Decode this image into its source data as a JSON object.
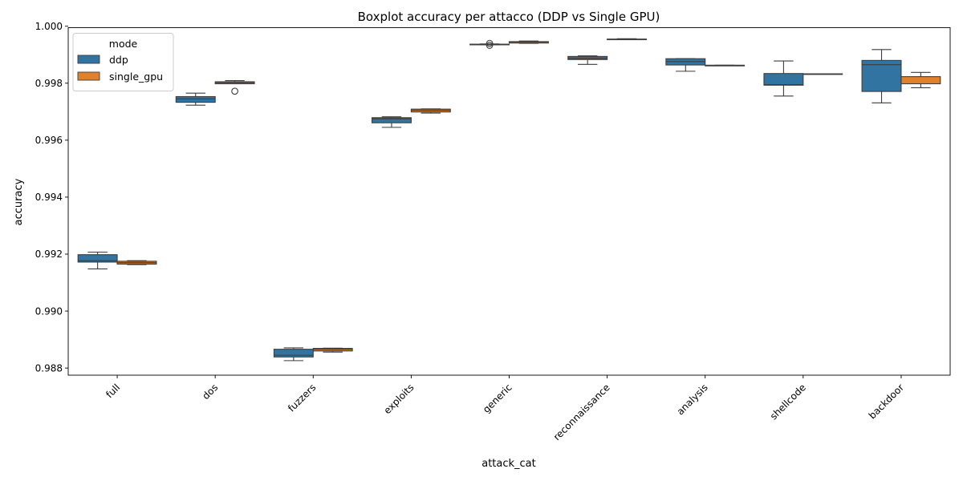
{
  "chart_data": {
    "type": "boxplot",
    "title": "Boxplot accuracy per attacco (DDP vs Single GPU)",
    "xlabel": "attack_cat",
    "ylabel": "accuracy",
    "ylim": [
      0.98775,
      0.99995
    ],
    "yticks": [
      "0.988",
      "0.990",
      "0.992",
      "0.994",
      "0.996",
      "0.998",
      "1.000"
    ],
    "ytick_values": [
      0.988,
      0.99,
      0.992,
      0.994,
      0.996,
      0.998,
      1.0
    ],
    "categories": [
      "full",
      "dos",
      "fuzzers",
      "exploits",
      "generic",
      "reconnaissance",
      "analysis",
      "shellcode",
      "backdoor"
    ],
    "grid": false,
    "legend": {
      "title": "mode",
      "position": "top-left"
    },
    "series": [
      {
        "name": "ddp",
        "color": "#3274a1",
        "boxes": [
          {
            "whislo": 0.99148,
            "q1": 0.99172,
            "med": 0.99177,
            "q3": 0.99198,
            "whishi": 0.99207,
            "fliers": []
          },
          {
            "whislo": 0.99723,
            "q1": 0.99733,
            "med": 0.99745,
            "q3": 0.99753,
            "whishi": 0.99765,
            "fliers": []
          },
          {
            "whislo": 0.98826,
            "q1": 0.98839,
            "med": 0.98845,
            "q3": 0.98866,
            "whishi": 0.98871,
            "fliers": []
          },
          {
            "whislo": 0.99645,
            "q1": 0.99661,
            "med": 0.99675,
            "q3": 0.99679,
            "whishi": 0.99682,
            "fliers": []
          },
          {
            "whislo": 0.99935,
            "q1": 0.99936,
            "med": 0.99936,
            "q3": 0.99937,
            "whishi": 0.99938,
            "fliers": [
              0.99933,
              0.9994
            ]
          },
          {
            "whislo": 0.99866,
            "q1": 0.99883,
            "med": 0.99888,
            "q3": 0.99894,
            "whishi": 0.99896,
            "fliers": []
          },
          {
            "whislo": 0.99842,
            "q1": 0.99864,
            "med": 0.99876,
            "q3": 0.99886,
            "whishi": 0.99886,
            "fliers": []
          },
          {
            "whislo": 0.99755,
            "q1": 0.99793,
            "med": 0.99795,
            "q3": 0.99834,
            "whishi": 0.99878,
            "fliers": []
          },
          {
            "whislo": 0.99731,
            "q1": 0.99771,
            "med": 0.99865,
            "q3": 0.9988,
            "whishi": 0.99918,
            "fliers": []
          }
        ]
      },
      {
        "name": "single_gpu",
        "color": "#e1812c",
        "boxes": [
          {
            "whislo": 0.99163,
            "q1": 0.99165,
            "med": 0.9917,
            "q3": 0.99175,
            "whishi": 0.99177,
            "fliers": []
          },
          {
            "whislo": 0.99798,
            "q1": 0.99798,
            "med": 0.99802,
            "q3": 0.99805,
            "whishi": 0.99809,
            "fliers": [
              0.99772
            ]
          },
          {
            "whislo": 0.98856,
            "q1": 0.9886,
            "med": 0.98866,
            "q3": 0.98869,
            "whishi": 0.9887,
            "fliers": []
          },
          {
            "whislo": 0.99695,
            "q1": 0.99699,
            "med": 0.99705,
            "q3": 0.99709,
            "whishi": 0.9971,
            "fliers": []
          },
          {
            "whislo": 0.9994,
            "q1": 0.99941,
            "med": 0.99945,
            "q3": 0.99946,
            "whishi": 0.99948,
            "fliers": []
          },
          {
            "whislo": 0.99953,
            "q1": 0.99953,
            "med": 0.99954,
            "q3": 0.99955,
            "whishi": 0.99956,
            "fliers": []
          },
          {
            "whislo": 0.99863,
            "q1": 0.99863,
            "med": 0.99863,
            "q3": 0.99863,
            "whishi": 0.99863,
            "fliers": []
          },
          {
            "whislo": 0.99833,
            "q1": 0.99833,
            "med": 0.99833,
            "q3": 0.99833,
            "whishi": 0.99833,
            "fliers": []
          },
          {
            "whislo": 0.99784,
            "q1": 0.99798,
            "med": 0.99798,
            "q3": 0.99823,
            "whishi": 0.99838,
            "fliers": []
          }
        ]
      }
    ]
  }
}
